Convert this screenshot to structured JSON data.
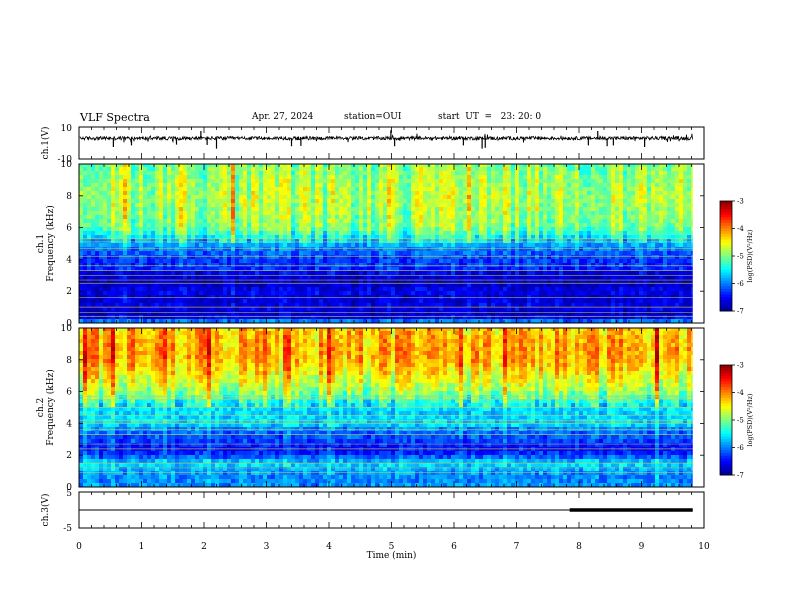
{
  "header": {
    "title": "VLF Spectra",
    "date": "Apr. 27, 2024",
    "station": "station=OUI",
    "start": "start  UT  =   23: 20: 0"
  },
  "chart_data": [
    {
      "type": "line",
      "panel": "waveform-ch1",
      "ylabel": "ch.1(V)",
      "ylim": [
        -10,
        10
      ],
      "yticks": [
        "10",
        "-10"
      ],
      "xlim": [
        0,
        10
      ],
      "baseline": 3,
      "spikes": [
        {
          "t": 0.55,
          "v": -2.5
        },
        {
          "t": 0.84,
          "v": -1.5
        },
        {
          "t": 1.56,
          "v": -1.0
        },
        {
          "t": 1.95,
          "v": 7.5
        },
        {
          "t": 2.05,
          "v": -1.2
        },
        {
          "t": 2.2,
          "v": -3.5
        },
        {
          "t": 3.4,
          "v": -2.0
        },
        {
          "t": 3.55,
          "v": -1.8
        },
        {
          "t": 4.99,
          "v": 8.0
        },
        {
          "t": 5.05,
          "v": -2.0
        },
        {
          "t": 6.15,
          "v": -1.5
        },
        {
          "t": 6.45,
          "v": -3.5
        },
        {
          "t": 6.5,
          "v": -3.0
        },
        {
          "t": 8.15,
          "v": -1.5
        },
        {
          "t": 8.3,
          "v": 7.5
        },
        {
          "t": 8.45,
          "v": -2.0
        },
        {
          "t": 8.55,
          "v": -1.5
        },
        {
          "t": 9.05,
          "v": -2.5
        }
      ]
    },
    {
      "type": "heatmap",
      "panel": "spectrogram-ch1",
      "ylabel": "ch.1\nFrequency (kHz)",
      "ylim": [
        0,
        10
      ],
      "yticks": [
        "0",
        "2",
        "4",
        "6",
        "8",
        "10"
      ],
      "xlim": [
        0,
        10
      ],
      "data_end_min": 9.82,
      "colorbar": {
        "label": "log(PSD)(V²/Hz)",
        "range": [
          -7,
          -3
        ],
        "ticks": [
          "-3",
          "-4",
          "-5",
          "-6",
          "-7"
        ]
      },
      "profile_khz": [
        0,
        0.5,
        1,
        1.5,
        2,
        2.5,
        3,
        3.5,
        4,
        4.5,
        5,
        5.5,
        6,
        7,
        8,
        9,
        10
      ],
      "profile_logpsd": [
        -5.8,
        -6.8,
        -6.6,
        -6.7,
        -6.6,
        -6.8,
        -6.7,
        -6.3,
        -6.3,
        -6.1,
        -5.8,
        -5.4,
        -5.0,
        -4.9,
        -4.8,
        -4.9,
        -5.0
      ],
      "lines_khz": [
        0.4,
        0.65,
        1.0,
        1.6,
        2.5,
        2.7,
        3.0,
        3.3,
        3.6,
        4.2,
        4.7,
        5.1,
        5.3
      ]
    },
    {
      "type": "heatmap",
      "panel": "spectrogram-ch2",
      "ylabel": "ch.2\nFrequency (kHz)",
      "ylim": [
        0,
        10
      ],
      "yticks": [
        "0",
        "2",
        "4",
        "6",
        "8",
        "10"
      ],
      "xlim": [
        0,
        10
      ],
      "data_end_min": 9.82,
      "colorbar": {
        "label": "log(PSD)(V²/Hz)",
        "range": [
          -7,
          -3
        ],
        "ticks": [
          "-3",
          "-4",
          "-5",
          "-6",
          "-7"
        ]
      },
      "profile_khz": [
        0,
        0.5,
        1,
        1.5,
        2,
        2.5,
        3,
        3.5,
        4,
        4.5,
        5,
        5.5,
        6,
        7,
        8,
        9,
        10
      ],
      "profile_logpsd": [
        -5.9,
        -6.0,
        -5.9,
        -5.6,
        -6.3,
        -6.5,
        -6.2,
        -6.1,
        -5.6,
        -5.7,
        -5.6,
        -5.3,
        -4.9,
        -4.5,
        -4.2,
        -4.2,
        -4.3
      ],
      "lines_khz": [
        0.9,
        1.2,
        1.5,
        2.4,
        2.7,
        3.3,
        3.6,
        4.0,
        4.2,
        4.5,
        5.0,
        5.5,
        5.7
      ]
    },
    {
      "type": "line",
      "panel": "waveform-ch3",
      "ylabel": "ch.3(V)",
      "ylim": [
        -5,
        5
      ],
      "yticks": [
        "5",
        "-5"
      ],
      "xlim": [
        0,
        10
      ],
      "baseline": 0,
      "segments": [
        {
          "x0": 0,
          "x1": 7.85,
          "v": 0,
          "w": 1
        },
        {
          "x0": 7.85,
          "x1": 9.82,
          "v": 0,
          "w": 3.5
        }
      ]
    }
  ],
  "xaxis": {
    "label": "Time (min)",
    "ticks": [
      "0",
      "1",
      "2",
      "3",
      "4",
      "5",
      "6",
      "7",
      "8",
      "9",
      "10"
    ]
  },
  "colors": {
    "axis": "#000000",
    "waveform": "#000000",
    "jet": [
      "#00008f",
      "#0000ff",
      "#0080ff",
      "#00ffff",
      "#80ff80",
      "#ffff00",
      "#ff8000",
      "#ff0000",
      "#800000"
    ]
  }
}
